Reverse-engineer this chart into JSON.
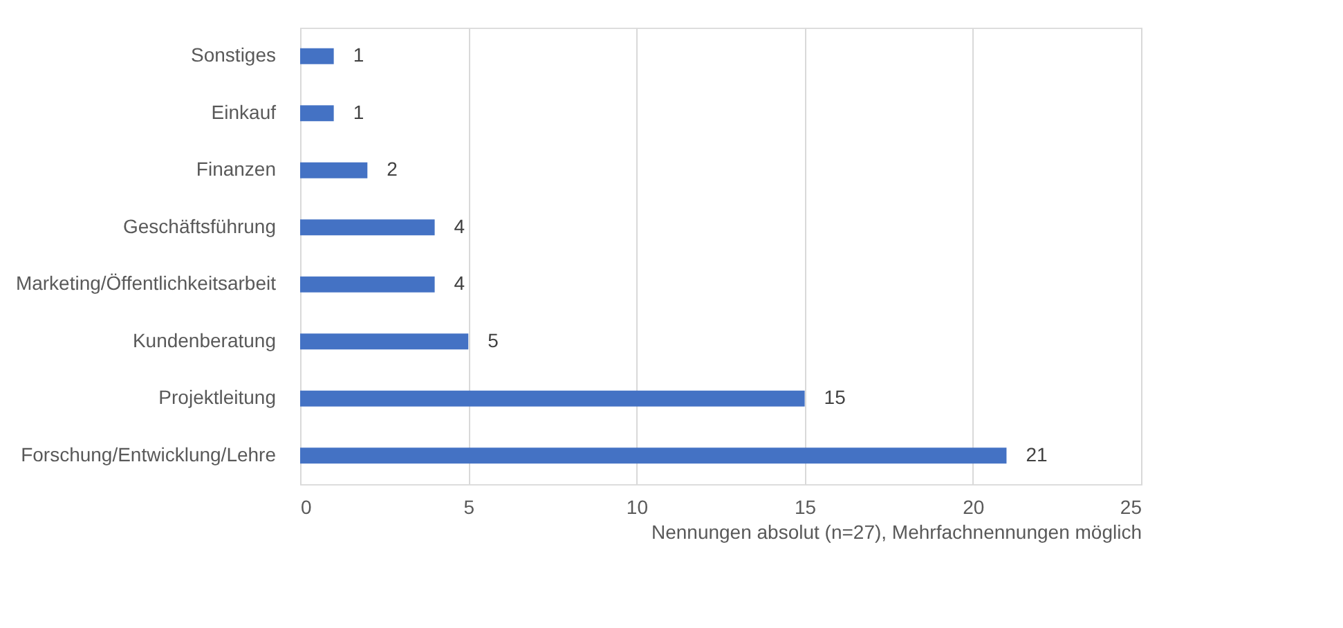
{
  "chart_data": {
    "type": "bar",
    "orientation": "horizontal",
    "categories": [
      "Sonstiges",
      "Einkauf",
      "Finanzen",
      "Geschäftsführung",
      "Marketing/Öffentlichkeitsarbeit",
      "Kundenberatung",
      "Projektleitung",
      "Forschung/Entwicklung/Lehre"
    ],
    "values": [
      1,
      1,
      2,
      4,
      4,
      5,
      15,
      21
    ],
    "color": "#4472c4",
    "xlim": [
      0,
      25
    ],
    "xticks": [
      0,
      5,
      10,
      15,
      20,
      25
    ],
    "grid": "x",
    "data_labels": true,
    "xlabel": "Nennungen absolut (n=27), Mehrfachnennungen möglich"
  }
}
